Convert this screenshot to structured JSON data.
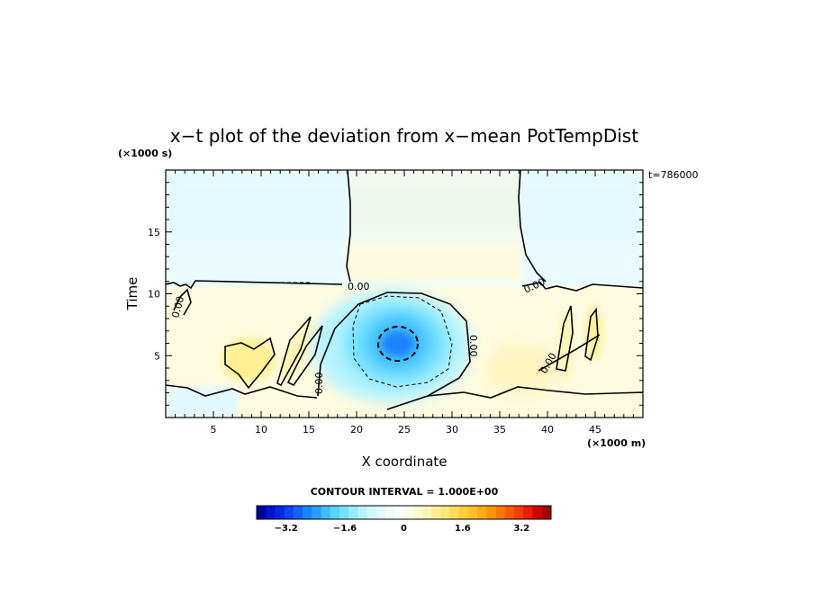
{
  "chart_data": {
    "type": "heatmap",
    "title": "x−t plot of the deviation from x−mean PotTempDist",
    "xlabel": "X coordinate",
    "ylabel": "Time",
    "x_unit": "(×1000 m)",
    "y_unit": "(×1000 s)",
    "annotation": "t=786000",
    "xlim": [
      0,
      50
    ],
    "ylim": [
      0,
      20
    ],
    "xticks": [
      5,
      10,
      15,
      20,
      25,
      30,
      35,
      40,
      45
    ],
    "yticks": [
      5,
      10,
      15
    ],
    "contour_interval_label": "CONTOUR INTERVAL = 1.000E+00",
    "contour_label_value": "0.00",
    "colorbar": {
      "range": [
        -4,
        4
      ],
      "tick_values": [
        -3.2,
        -1.6,
        0,
        1.6,
        3.2
      ],
      "tick_labels": [
        "−3.2",
        "−1.6",
        "0",
        "1.6",
        "3.2"
      ],
      "colors": [
        "#0000a0",
        "#0014c8",
        "#0028e6",
        "#0a46f5",
        "#1464ff",
        "#1e82ff",
        "#28a0ff",
        "#3cbeff",
        "#5ad2ff",
        "#78e1ff",
        "#96ebff",
        "#b4f3ff",
        "#cdf8ff",
        "#e1fbff",
        "#f0fdff",
        "#ffffff",
        "#ffffeb",
        "#fffad2",
        "#fff5b4",
        "#fff096",
        "#ffe678",
        "#ffdc5a",
        "#ffcd3c",
        "#ffbe28",
        "#ffaa14",
        "#ff9600",
        "#ff7800",
        "#ff5a00",
        "#f53c00",
        "#e61e00",
        "#cd0000",
        "#a00000"
      ]
    },
    "field_features": [
      {
        "kind": "cold_vortex",
        "x": 24.5,
        "t": 5.8,
        "value": -3.2
      },
      {
        "kind": "warm_patch",
        "x": 9,
        "t": 4.5,
        "value": 1.2
      },
      {
        "kind": "upper_warm_column",
        "x_range": [
          20,
          37
        ],
        "t_range": [
          11,
          20
        ],
        "value": 0.4
      },
      {
        "kind": "upper_cool_region",
        "t_range": [
          11,
          20
        ],
        "value": -0.4
      }
    ]
  }
}
